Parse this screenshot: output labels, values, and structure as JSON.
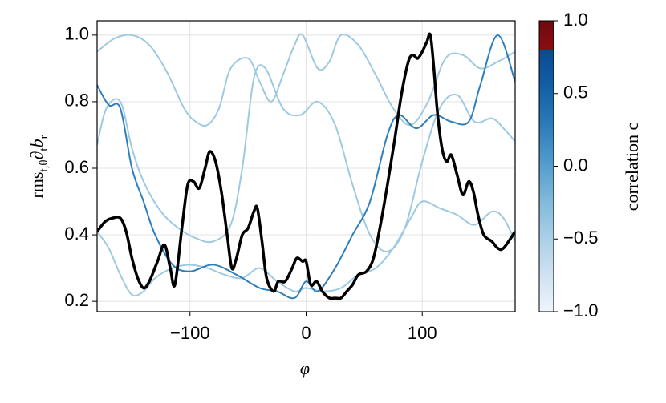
{
  "chart_data": {
    "type": "line",
    "xlabel": "φ",
    "ylabel": [
      "rms",
      "t,θ",
      "∂",
      "t",
      "b",
      "r"
    ],
    "xlim": [
      -180,
      180
    ],
    "ylim": [
      0.169,
      1.043
    ],
    "xticks": [
      {
        "value": -100,
        "label": "−100"
      },
      0,
      100
    ],
    "yticks": [
      0.2,
      0.4,
      0.6,
      0.8,
      {
        "value": 1.0,
        "label": "1.0"
      }
    ],
    "grid": true,
    "series": [
      {
        "color": "#9ecae1",
        "x": [
          -180,
          -165,
          -150,
          -135,
          -120,
          -105,
          -95,
          -85,
          -75,
          -65,
          -50,
          -40,
          -30,
          -20,
          -10,
          -3,
          10,
          20,
          30,
          45,
          60,
          75,
          90,
          105,
          120,
          135,
          150,
          165,
          180
        ],
        "values": [
          0.95,
          0.99,
          1.0,
          0.97,
          0.89,
          0.78,
          0.74,
          0.73,
          0.78,
          0.9,
          0.93,
          0.86,
          0.8,
          0.88,
          0.97,
          1.0,
          0.9,
          0.92,
          1.0,
          0.97,
          0.88,
          0.78,
          0.73,
          0.8,
          0.93,
          0.94,
          0.9,
          0.92,
          0.95
        ]
      },
      {
        "color": "#9ecae1",
        "x": [
          -180,
          -172,
          -160,
          -150,
          -140,
          -125,
          -110,
          -95,
          -80,
          -65,
          -55,
          -45,
          -35,
          -20,
          -5,
          10,
          25,
          40,
          55,
          70,
          85,
          100,
          115,
          130,
          145,
          160,
          170,
          180
        ],
        "values": [
          0.67,
          0.78,
          0.8,
          0.66,
          0.56,
          0.47,
          0.42,
          0.39,
          0.38,
          0.43,
          0.6,
          0.87,
          0.9,
          0.78,
          0.76,
          0.8,
          0.73,
          0.55,
          0.4,
          0.35,
          0.42,
          0.62,
          0.78,
          0.82,
          0.74,
          0.75,
          0.72,
          0.68
        ]
      },
      {
        "color": "#9ecae1",
        "x": [
          -180,
          -170,
          -160,
          -150,
          -140,
          -130,
          -115,
          -100,
          -85,
          -70,
          -55,
          -40,
          -25,
          -10,
          0,
          15,
          30,
          45,
          60,
          75,
          90,
          100,
          115,
          130,
          145,
          160,
          170,
          180
        ],
        "values": [
          0.41,
          0.36,
          0.28,
          0.22,
          0.23,
          0.27,
          0.3,
          0.31,
          0.3,
          0.28,
          0.27,
          0.3,
          0.26,
          0.23,
          0.24,
          0.23,
          0.24,
          0.28,
          0.3,
          0.36,
          0.45,
          0.5,
          0.48,
          0.46,
          0.43,
          0.47,
          0.45,
          0.38
        ]
      },
      {
        "color": "#2e7ebc",
        "x": [
          -180,
          -170,
          -160,
          -150,
          -140,
          -130,
          -115,
          -100,
          -80,
          -60,
          -40,
          -25,
          -10,
          0,
          10,
          25,
          40,
          55,
          70,
          80,
          95,
          110,
          125,
          140,
          150,
          165,
          180
        ],
        "values": [
          0.85,
          0.79,
          0.78,
          0.6,
          0.5,
          0.4,
          0.31,
          0.29,
          0.31,
          0.28,
          0.24,
          0.23,
          0.21,
          0.26,
          0.23,
          0.3,
          0.4,
          0.5,
          0.7,
          0.76,
          0.72,
          0.76,
          0.74,
          0.74,
          0.85,
          1.0,
          0.86
        ]
      },
      {
        "color": "#000000",
        "width": 3.5,
        "x": [
          -180,
          -173,
          -167,
          -160,
          -155,
          -150,
          -145,
          -140,
          -135,
          -128,
          -122,
          -117,
          -113,
          -107,
          -102,
          -97,
          -92,
          -87,
          -83,
          -78,
          -73,
          -68,
          -64,
          -60,
          -55,
          -50,
          -45,
          -42,
          -38,
          -34,
          -28,
          -24,
          -18,
          -12,
          -8,
          -3,
          0,
          4,
          9,
          14,
          20,
          25,
          30,
          35,
          40,
          45,
          52,
          58,
          64,
          70,
          76,
          82,
          88,
          92,
          96,
          100,
          104,
          107,
          110,
          113,
          117,
          121,
          125,
          130,
          135,
          140,
          144,
          148,
          153,
          160,
          165,
          170,
          180
        ],
        "values": [
          0.41,
          0.44,
          0.45,
          0.45,
          0.41,
          0.33,
          0.27,
          0.24,
          0.26,
          0.32,
          0.37,
          0.3,
          0.25,
          0.42,
          0.55,
          0.56,
          0.54,
          0.6,
          0.65,
          0.62,
          0.53,
          0.4,
          0.3,
          0.33,
          0.4,
          0.42,
          0.47,
          0.48,
          0.38,
          0.27,
          0.23,
          0.26,
          0.26,
          0.3,
          0.33,
          0.32,
          0.32,
          0.25,
          0.26,
          0.23,
          0.21,
          0.21,
          0.21,
          0.23,
          0.25,
          0.28,
          0.29,
          0.33,
          0.43,
          0.55,
          0.68,
          0.82,
          0.92,
          0.94,
          0.93,
          0.95,
          0.98,
          1.0,
          0.9,
          0.77,
          0.66,
          0.62,
          0.64,
          0.58,
          0.52,
          0.56,
          0.53,
          0.46,
          0.4,
          0.38,
          0.36,
          0.36,
          0.41
        ]
      }
    ],
    "colorbar": {
      "label": "correlation c",
      "lim": [
        -1,
        1
      ],
      "ticks": [
        {
          "value": 1.0,
          "label": "1.0"
        },
        0.5,
        {
          "value": 0.0,
          "label": "0.0"
        },
        {
          "value": -0.5,
          "label": "−0.5"
        },
        {
          "value": -1.0,
          "label": "−1.0"
        }
      ],
      "cmap": [
        "#eef5fc",
        "#cfe1f2",
        "#a9cfe6",
        "#7fb8da",
        "#519bcc",
        "#2c7bb9",
        "#135fa5",
        "#0b4a91"
      ],
      "split": 0.8,
      "above": [
        "#8c0d12",
        "#6d0a0e"
      ]
    }
  }
}
